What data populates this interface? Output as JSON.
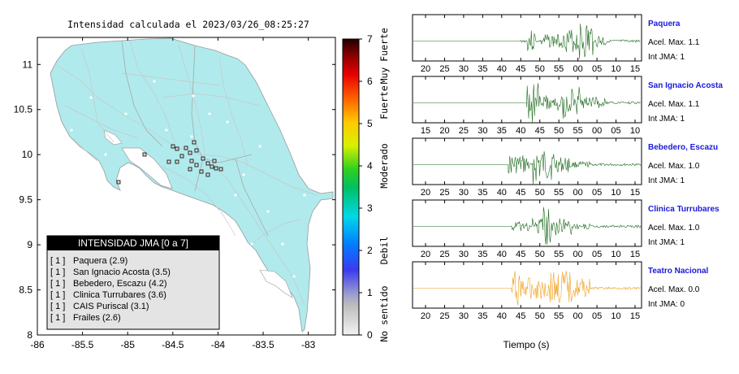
{
  "map": {
    "title": "Intensidad calculada el 2023/03/26_08:25:27",
    "x_ticks": [
      "-86",
      "-85.5",
      "-85",
      "-84.5",
      "-84",
      "-83.5",
      "-83"
    ],
    "y_ticks": [
      "11",
      "10.5",
      "10",
      "9.5",
      "9",
      "8.5",
      "8"
    ],
    "x_range": [
      -86,
      -82.7
    ],
    "y_range": [
      8,
      11.3
    ],
    "land_color": "#b0eaec",
    "legend_title": "INTENSIDAD JMA [0 a 7]",
    "legend_items": [
      {
        "badge": "[ 1 ]",
        "label": "Paquera (2.9)"
      },
      {
        "badge": "[ 1 ]",
        "label": "San Ignacio Acosta (3.5)"
      },
      {
        "badge": "[ 1 ]",
        "label": "Bebedero, Escazu (4.2)"
      },
      {
        "badge": "[ 1 ]",
        "label": "Clinica Turrubares (3.6)"
      },
      {
        "badge": "[ 1 ]",
        "label": "CAIS Puriscal (3.1)"
      },
      {
        "badge": "[ 1 ]",
        "label": "Frailes (2.6)"
      }
    ]
  },
  "colorbar": {
    "ticks": [
      "0",
      "1",
      "2",
      "3",
      "4",
      "5",
      "6",
      "7"
    ],
    "range": [
      0,
      7
    ],
    "labels": [
      {
        "text": "No sentido",
        "value": 0.5
      },
      {
        "text": "Debil",
        "value": 2
      },
      {
        "text": "Moderado",
        "value": 4
      },
      {
        "text": "Fuerte",
        "value": 5.5
      },
      {
        "text": "Muy Fuerte",
        "value": 6.6
      }
    ]
  },
  "waveforms": {
    "x_label": "Tiempo (s)",
    "stations": [
      {
        "name": "Paquera",
        "accel": "Acel. Max. 1.1",
        "int": "Int JMA: 1",
        "color": "#1f6b1f",
        "ticks": [
          "20",
          "25",
          "30",
          "35",
          "40",
          "45",
          "50",
          "55",
          "00",
          "05",
          "10",
          "15"
        ],
        "first_tick_sec": 20,
        "start_sec": 53,
        "bursts": [
          [
            55,
            58,
            0.55
          ],
          [
            60,
            68,
            0.35
          ],
          [
            68,
            75,
            0.6
          ],
          [
            72,
            77,
            1.0
          ],
          [
            78,
            82,
            0.35
          ]
        ]
      },
      {
        "name": "San Ignacio Acosta",
        "accel": "Acel. Max. 1.1",
        "int": "Int JMA: 1",
        "color": "#1f6b1f",
        "ticks": [
          "15",
          "20",
          "25",
          "30",
          "35",
          "40",
          "45",
          "50",
          "55",
          "00",
          "05",
          "10"
        ],
        "first_tick_sec": 15,
        "start_sec": 50,
        "bursts": [
          [
            50,
            54,
            1.0
          ],
          [
            54,
            62,
            0.4
          ],
          [
            62,
            68,
            0.8
          ],
          [
            68,
            76,
            0.3
          ]
        ]
      },
      {
        "name": "Bebedero, Escazu",
        "accel": "Acel. Max. 1.0",
        "int": "Int JMA: 1",
        "color": "#1f6b1f",
        "ticks": [
          "20",
          "25",
          "30",
          "35",
          "40",
          "45",
          "50",
          "55",
          "00",
          "05",
          "10",
          "15"
        ],
        "first_tick_sec": 20,
        "start_sec": 49,
        "bursts": [
          [
            49,
            56,
            0.5
          ],
          [
            57,
            60,
            1.0
          ],
          [
            60,
            64,
            0.8
          ],
          [
            64,
            70,
            0.4
          ],
          [
            70,
            76,
            0.15
          ]
        ]
      },
      {
        "name": "Clinica Turrubares",
        "accel": "Acel. Max. 1.0",
        "int": "Int JMA: 1",
        "color": "#1f6b1f",
        "ticks": [
          "20",
          "25",
          "30",
          "35",
          "40",
          "45",
          "50",
          "55",
          "00",
          "05",
          "10",
          "15"
        ],
        "first_tick_sec": 20,
        "start_sec": 50,
        "bursts": [
          [
            50,
            56,
            0.25
          ],
          [
            57,
            60,
            0.45
          ],
          [
            60,
            63,
            1.0
          ],
          [
            63,
            70,
            0.45
          ],
          [
            70,
            76,
            0.15
          ]
        ]
      },
      {
        "name": "Teatro Nacional",
        "accel": "Acel. Max. 0.0",
        "int": "Int JMA: 0",
        "color": "#f0a020",
        "ticks": [
          "20",
          "25",
          "30",
          "35",
          "40",
          "45",
          "50",
          "55",
          "00",
          "05",
          "10",
          "15"
        ],
        "first_tick_sec": 20,
        "start_sec": 50,
        "bursts": [
          [
            50,
            54,
            0.9
          ],
          [
            54,
            62,
            0.55
          ],
          [
            62,
            70,
            0.9
          ],
          [
            70,
            76,
            0.5
          ]
        ]
      }
    ]
  }
}
